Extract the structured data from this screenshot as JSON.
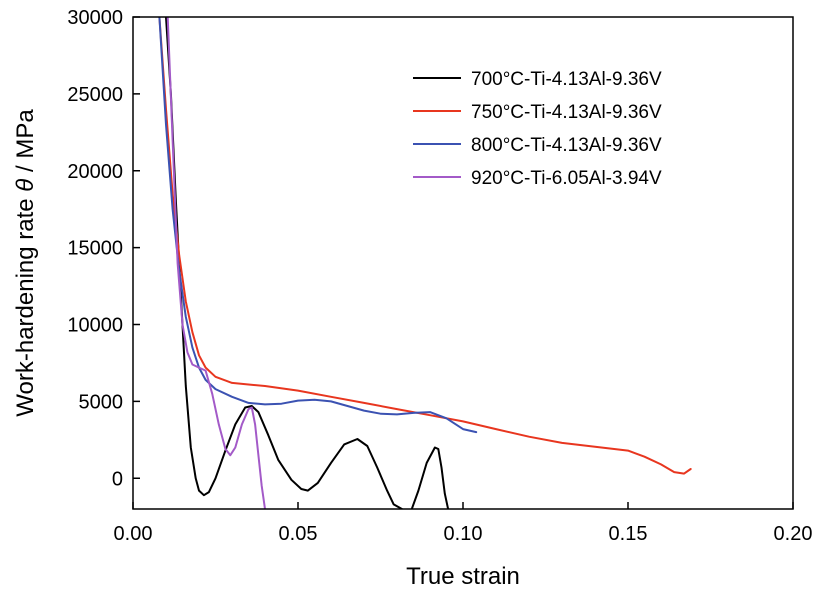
{
  "chart_data": {
    "type": "line",
    "xlabel": "True strain",
    "ylabel_parts": [
      "Work-hardening rate ",
      "θ",
      " / MPa"
    ],
    "xlim": [
      0.0,
      0.2
    ],
    "ylim": [
      -2000,
      30000
    ],
    "x_ticks": [
      0.0,
      0.05,
      0.1,
      0.15,
      0.2
    ],
    "x_tick_labels": [
      "0.00",
      "0.05",
      "0.10",
      "0.15",
      "0.20"
    ],
    "y_ticks": [
      0,
      5000,
      10000,
      15000,
      20000,
      25000,
      30000
    ],
    "y_tick_labels": [
      "0",
      "5000",
      "10000",
      "15000",
      "20000",
      "25000",
      "30000"
    ],
    "grid": false,
    "legend_position": "top-right",
    "series": [
      {
        "name": "700°C-Ti-4.13Al-9.36V",
        "color": "#000000",
        "points": [
          [
            0.01,
            30000
          ],
          [
            0.0115,
            25000
          ],
          [
            0.013,
            18000
          ],
          [
            0.0145,
            12000
          ],
          [
            0.016,
            6000
          ],
          [
            0.0175,
            2000
          ],
          [
            0.019,
            0
          ],
          [
            0.02,
            -800
          ],
          [
            0.0215,
            -1100
          ],
          [
            0.023,
            -900
          ],
          [
            0.025,
            0
          ],
          [
            0.028,
            1800
          ],
          [
            0.031,
            3500
          ],
          [
            0.034,
            4600
          ],
          [
            0.036,
            4700
          ],
          [
            0.038,
            4300
          ],
          [
            0.041,
            2800
          ],
          [
            0.044,
            1200
          ],
          [
            0.048,
            -100
          ],
          [
            0.051,
            -700
          ],
          [
            0.053,
            -800
          ],
          [
            0.056,
            -300
          ],
          [
            0.06,
            1000
          ],
          [
            0.064,
            2200
          ],
          [
            0.068,
            2550
          ],
          [
            0.071,
            2100
          ],
          [
            0.074,
            700
          ],
          [
            0.077,
            -800
          ],
          [
            0.079,
            -1700
          ],
          [
            0.0815,
            -2000
          ]
        ]
      },
      {
        "name": "",
        "color": "#000000",
        "points": [
          [
            0.0845,
            -2000
          ],
          [
            0.0865,
            -800
          ],
          [
            0.089,
            1000
          ],
          [
            0.0915,
            2000
          ],
          [
            0.0925,
            1900
          ],
          [
            0.0935,
            700
          ],
          [
            0.0945,
            -1000
          ],
          [
            0.0955,
            -2000
          ]
        ]
      },
      {
        "name": "750°C-Ti-4.13Al-9.36V",
        "color": "#e8361f",
        "points": [
          [
            0.008,
            30000
          ],
          [
            0.01,
            24000
          ],
          [
            0.012,
            18500
          ],
          [
            0.014,
            14500
          ],
          [
            0.016,
            11500
          ],
          [
            0.018,
            9500
          ],
          [
            0.02,
            8000
          ],
          [
            0.022,
            7200
          ],
          [
            0.025,
            6600
          ],
          [
            0.03,
            6200
          ],
          [
            0.035,
            6100
          ],
          [
            0.04,
            6000
          ],
          [
            0.05,
            5700
          ],
          [
            0.06,
            5300
          ],
          [
            0.07,
            4900
          ],
          [
            0.08,
            4500
          ],
          [
            0.09,
            4100
          ],
          [
            0.1,
            3700
          ],
          [
            0.11,
            3200
          ],
          [
            0.12,
            2700
          ],
          [
            0.13,
            2300
          ],
          [
            0.14,
            2050
          ],
          [
            0.15,
            1800
          ],
          [
            0.155,
            1400
          ],
          [
            0.16,
            900
          ],
          [
            0.164,
            400
          ],
          [
            0.167,
            300
          ],
          [
            0.169,
            600
          ]
        ]
      },
      {
        "name": "800°C-Ti-4.13Al-9.36V",
        "color": "#3b52b2",
        "points": [
          [
            0.008,
            30000
          ],
          [
            0.01,
            23000
          ],
          [
            0.012,
            17500
          ],
          [
            0.014,
            13500
          ],
          [
            0.016,
            10500
          ],
          [
            0.018,
            8500
          ],
          [
            0.02,
            7200
          ],
          [
            0.022,
            6400
          ],
          [
            0.025,
            5800
          ],
          [
            0.03,
            5300
          ],
          [
            0.035,
            4900
          ],
          [
            0.04,
            4800
          ],
          [
            0.045,
            4850
          ],
          [
            0.05,
            5050
          ],
          [
            0.055,
            5100
          ],
          [
            0.06,
            5000
          ],
          [
            0.065,
            4700
          ],
          [
            0.07,
            4400
          ],
          [
            0.075,
            4200
          ],
          [
            0.08,
            4150
          ],
          [
            0.085,
            4250
          ],
          [
            0.09,
            4300
          ],
          [
            0.095,
            3900
          ],
          [
            0.1,
            3200
          ],
          [
            0.104,
            3000
          ]
        ]
      },
      {
        "name": "920°C-Ti-6.05Al-3.94V",
        "color": "#a35ac8",
        "points": [
          [
            0.0105,
            30000
          ],
          [
            0.012,
            22000
          ],
          [
            0.0135,
            14000
          ],
          [
            0.015,
            10000
          ],
          [
            0.0165,
            8200
          ],
          [
            0.018,
            7400
          ],
          [
            0.02,
            7200
          ],
          [
            0.022,
            7000
          ],
          [
            0.024,
            5500
          ],
          [
            0.026,
            3500
          ],
          [
            0.028,
            1900
          ],
          [
            0.0295,
            1500
          ],
          [
            0.031,
            2000
          ],
          [
            0.033,
            3500
          ],
          [
            0.035,
            4500
          ],
          [
            0.036,
            4600
          ],
          [
            0.037,
            3500
          ],
          [
            0.038,
            1500
          ],
          [
            0.039,
            -500
          ],
          [
            0.04,
            -2000
          ]
        ]
      }
    ]
  }
}
